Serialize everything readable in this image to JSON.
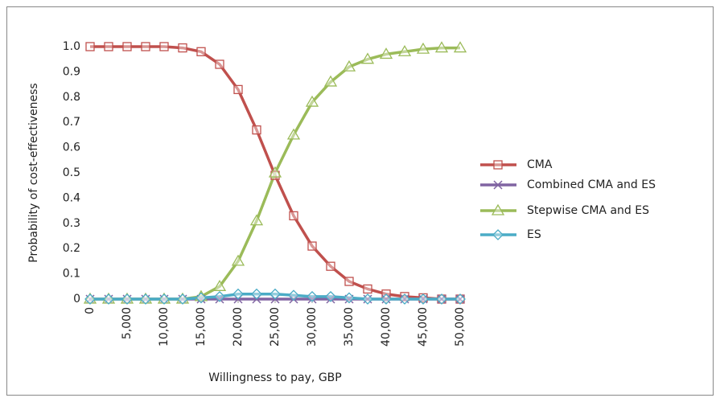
{
  "chart_data": {
    "type": "line",
    "xlabel": "Willingness to pay, GBP",
    "ylabel": "Probability of cost-effectiveness",
    "x": [
      0,
      2500,
      5000,
      7500,
      10000,
      12500,
      15000,
      17500,
      20000,
      22500,
      25000,
      27500,
      30000,
      32500,
      35000,
      37500,
      40000,
      42500,
      45000,
      47500,
      50000
    ],
    "xlim": [
      0,
      50000
    ],
    "xticks": [
      0,
      {
        "value": 5000,
        "label": "5,000"
      },
      {
        "value": 10000,
        "label": "10,000"
      },
      {
        "value": 15000,
        "label": "15,000"
      },
      {
        "value": 20000,
        "label": "20,000"
      },
      {
        "value": 25000,
        "label": "25,000"
      },
      {
        "value": 30000,
        "label": "30,000"
      },
      {
        "value": 35000,
        "label": "35,000"
      },
      {
        "value": 40000,
        "label": "40,000"
      },
      {
        "value": 45000,
        "label": "45,000"
      },
      {
        "value": 50000,
        "label": "50,000"
      }
    ],
    "ylim": [
      0,
      1
    ],
    "yticks": [
      0,
      0.1,
      0.2,
      0.3,
      0.4,
      0.5,
      0.6,
      0.7,
      0.8,
      0.9,
      {
        "value": 1,
        "label": "1.0"
      }
    ],
    "grid": false,
    "legend": "right",
    "series": [
      {
        "name": "CMA",
        "color": "#c0504d",
        "marker": "square",
        "values": [
          1,
          1,
          1,
          1,
          1,
          0.995,
          0.98,
          0.93,
          0.83,
          0.67,
          0.49,
          0.33,
          0.21,
          0.13,
          0.07,
          0.04,
          0.02,
          0.01,
          0.005,
          0,
          0
        ]
      },
      {
        "name": "Combined CMA and ES",
        "color": "#8064a2",
        "marker": "x",
        "values": [
          0,
          0,
          0,
          0,
          0,
          0,
          0,
          0,
          0,
          0,
          0,
          0,
          0,
          0,
          0,
          0,
          0,
          0,
          0,
          0,
          0
        ]
      },
      {
        "name": "Stepwise CMA and ES",
        "color": "#9bbb59",
        "marker": "triangle",
        "values": [
          0,
          0,
          0,
          0,
          0,
          0,
          0.01,
          0.05,
          0.15,
          0.31,
          0.5,
          0.65,
          0.78,
          0.86,
          0.92,
          0.95,
          0.97,
          0.98,
          0.99,
          0.995,
          0.995
        ]
      },
      {
        "name": "ES",
        "color": "#4bacc6",
        "marker": "diamond",
        "values": [
          0,
          0,
          0,
          0,
          0,
          0,
          0.005,
          0.01,
          0.02,
          0.02,
          0.02,
          0.015,
          0.01,
          0.01,
          0.005,
          0,
          0,
          0,
          0,
          0,
          0
        ]
      }
    ]
  }
}
